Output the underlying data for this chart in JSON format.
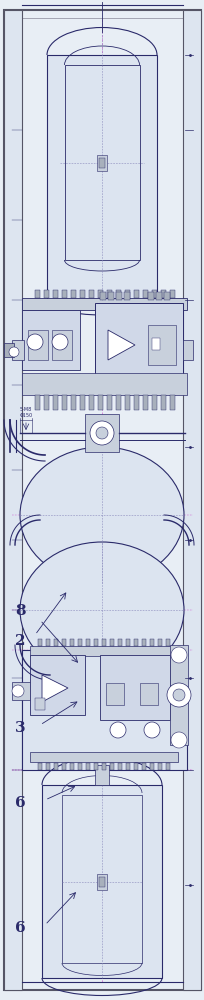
{
  "fig_width": 2.05,
  "fig_height": 10.0,
  "dpi": 100,
  "bg": "#e8eef5",
  "lc": "#2a2a6a",
  "tc": "#8888bb",
  "ml": "#cc44cc",
  "frame_outer": "#555566",
  "frame_inner": "#888899",
  "comp_fill": "#d0d8e8",
  "comp_edge": "#334466",
  "tank_fill": "#dce4f0",
  "white": "#ffffff",
  "gray_light": "#c8d0dc",
  "gray_mid": "#a8b0bc"
}
